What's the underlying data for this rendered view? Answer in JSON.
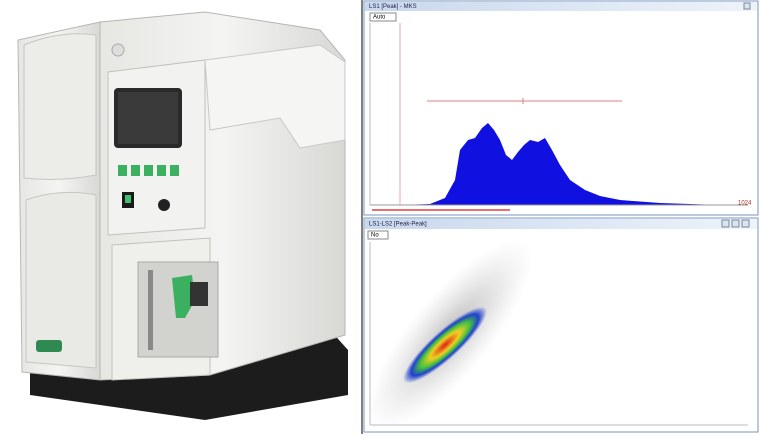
{
  "top_window": {
    "title": "LS1 [Peak] - MKS",
    "toolbar": "Auto",
    "axis_max": "1024"
  },
  "bottom_window": {
    "title": "LS1-LS2 [Peak-Peak]",
    "toolbar": "No"
  }
}
